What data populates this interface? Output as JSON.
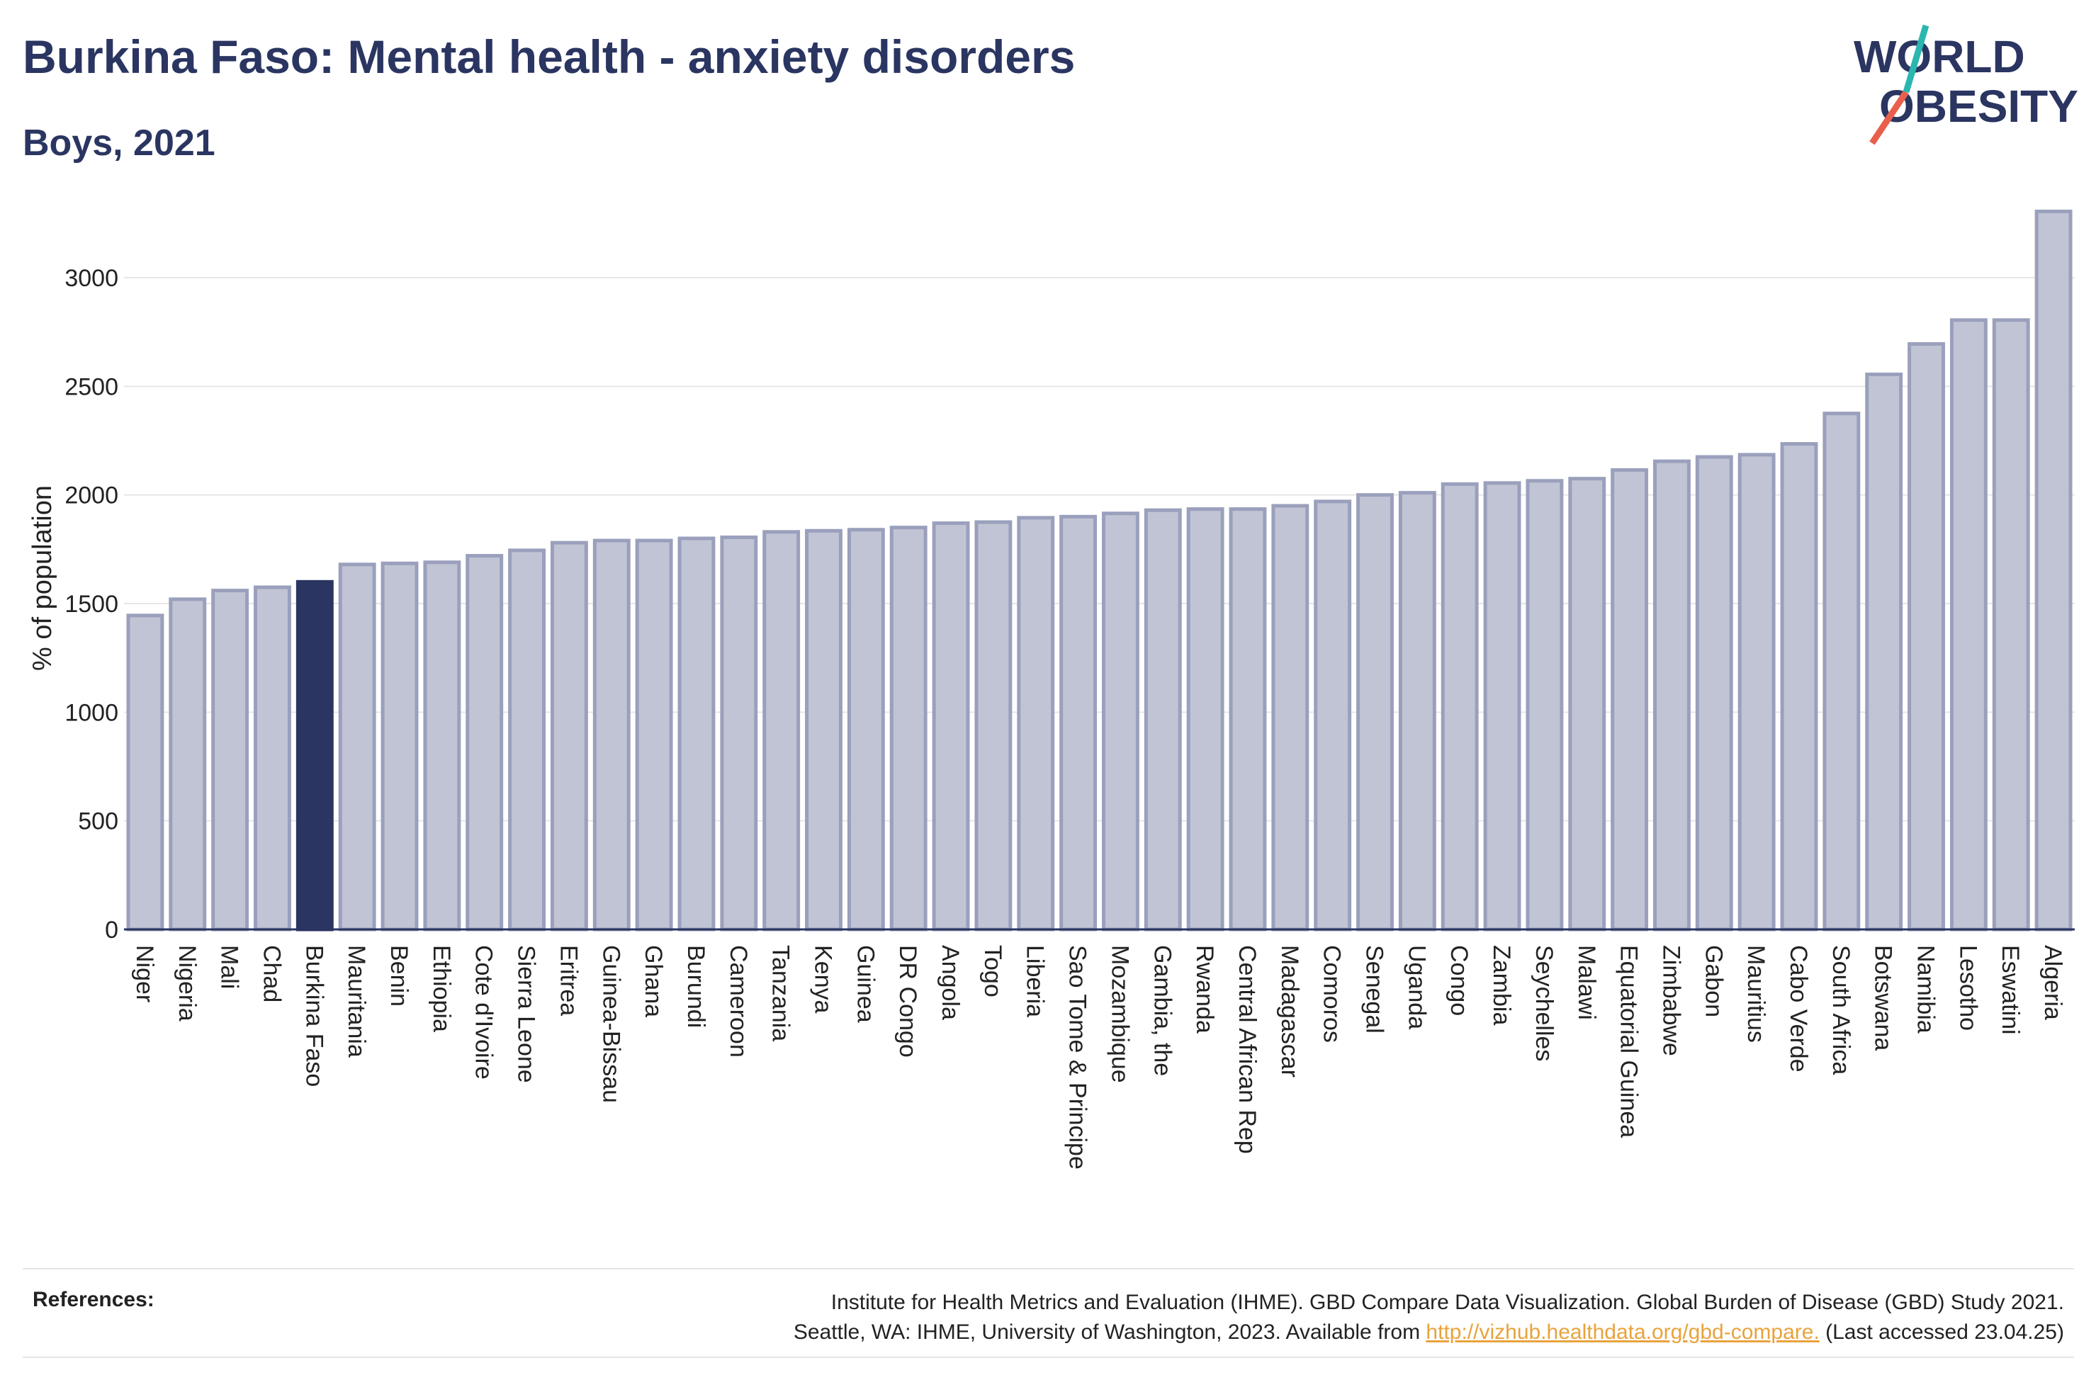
{
  "header": {
    "title": "Burkina Faso: Mental health - anxiety disorders",
    "subtitle": "Boys, 2021"
  },
  "logo": {
    "line1": "WORLD",
    "line2": "OBESITY",
    "colors": {
      "text": "#2a3561",
      "slash_red": "#e8604c",
      "slash_teal": "#2bb6b0"
    }
  },
  "colors": {
    "bar": "#c0c4d4",
    "bar_stroke": "#9aa0bc",
    "highlight": "#2a3561",
    "grid": "#e6e6e6",
    "axis": "#2a3561"
  },
  "chart_data": {
    "type": "bar",
    "title": "",
    "xlabel": "",
    "ylabel": "% of population",
    "ylim": [
      0,
      3300
    ],
    "yticks": [
      0,
      500,
      1000,
      1500,
      2000,
      2500,
      3000
    ],
    "grid": true,
    "highlight": "Burkina Faso",
    "categories": [
      "Niger",
      "Nigeria",
      "Mali",
      "Chad",
      "Burkina Faso",
      "Mauritania",
      "Benin",
      "Ethiopia",
      "Cote d'Ivoire",
      "Sierra Leone",
      "Eritrea",
      "Guinea-Bissau",
      "Ghana",
      "Burundi",
      "Cameroon",
      "Tanzania",
      "Kenya",
      "Guinea",
      "DR Congo",
      "Angola",
      "Togo",
      "Liberia",
      "Sao Tome & Principe",
      "Mozambique",
      "Gambia, the",
      "Rwanda",
      "Central African Rep",
      "Madagascar",
      "Comoros",
      "Senegal",
      "Uganda",
      "Congo",
      "Zambia",
      "Seychelles",
      "Malawi",
      "Equatorial Guinea",
      "Zimbabwe",
      "Gabon",
      "Mauritius",
      "Cabo Verde",
      "South Africa",
      "Botswana",
      "Namibia",
      "Lesotho",
      "Eswatini",
      "Algeria"
    ],
    "values": [
      1445,
      1520,
      1560,
      1575,
      1600,
      1680,
      1685,
      1690,
      1720,
      1745,
      1780,
      1790,
      1790,
      1800,
      1805,
      1830,
      1835,
      1840,
      1850,
      1870,
      1875,
      1895,
      1900,
      1915,
      1930,
      1935,
      1935,
      1950,
      1970,
      2000,
      2010,
      2050,
      2055,
      2065,
      2075,
      2115,
      2155,
      2175,
      2185,
      2235,
      2375,
      2555,
      2695,
      2805,
      2805,
      3305
    ]
  },
  "references": {
    "label": "References:",
    "line1": "Institute for Health Metrics and Evaluation (IHME). GBD Compare Data Visualization. Global Burden of Disease (GBD) Study 2021.",
    "line2_prefix": "Seattle, WA: IHME, University of Washington, 2023. Available from ",
    "link": "http://vizhub.healthdata.org/gbd-compare.",
    "line2_suffix": " (Last accessed 23.04.25)"
  }
}
